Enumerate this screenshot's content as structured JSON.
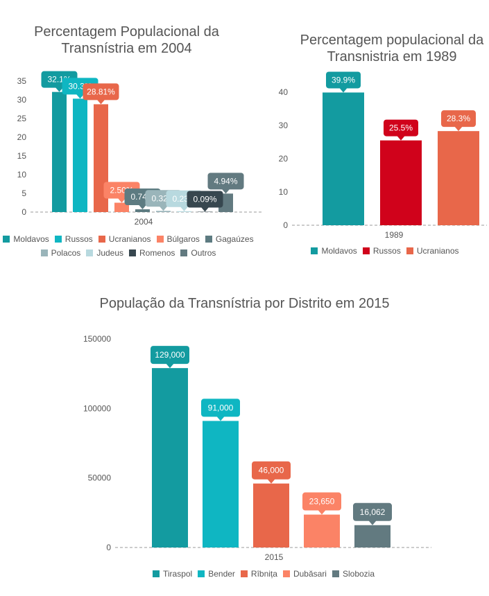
{
  "chart_data": [
    {
      "id": "c1",
      "type": "bar",
      "title": "Percentagem Populacional da Transnístria em 2004",
      "categories": [
        "2004"
      ],
      "ylim": [
        0,
        38
      ],
      "yticks": [
        0,
        5,
        10,
        15,
        20,
        25,
        30,
        35
      ],
      "grid": false,
      "legend": "bottom",
      "series": [
        {
          "name": "Moldavos",
          "value": 32.1,
          "label": "32.1%",
          "color": "#139ba0"
        },
        {
          "name": "Russos",
          "value": 30.3,
          "label": "30.3%",
          "color": "#0fb6c2"
        },
        {
          "name": "Ucranianos",
          "value": 28.81,
          "label": "28.81%",
          "color": "#e8674a"
        },
        {
          "name": "Búlgaros",
          "value": 2.5,
          "label": "2.50%",
          "color": "#fb8366"
        },
        {
          "name": "Gagaúzes",
          "value": 0.74,
          "label": "0.74%",
          "color": "#5d7b81"
        },
        {
          "name": "Polacos",
          "value": 0.32,
          "label": "0.32%",
          "color": "#9ab5ba"
        },
        {
          "name": "Judeus",
          "value": 0.23,
          "label": "0.23%",
          "color": "#b8d9df"
        },
        {
          "name": "Romenos",
          "value": 0.09,
          "label": "0.09%",
          "color": "#37474f"
        },
        {
          "name": "Outros",
          "value": 4.94,
          "label": "4.94%",
          "color": "#627a80"
        }
      ]
    },
    {
      "id": "c2",
      "type": "bar",
      "title": "Percentagem populacional da Transnistria em 1989",
      "categories": [
        "1989"
      ],
      "ylim": [
        0,
        45
      ],
      "yticks": [
        0,
        10,
        20,
        30,
        40
      ],
      "grid": false,
      "legend": "bottom",
      "series": [
        {
          "name": "Moldavos",
          "value": 39.9,
          "label": "39.9%",
          "color": "#139ba0"
        },
        {
          "name": "Russos",
          "value": 25.5,
          "label": "25.5%",
          "color": "#d0021b"
        },
        {
          "name": "Ucranianos",
          "value": 28.3,
          "label": "28.3%",
          "color": "#e8674a"
        }
      ]
    },
    {
      "id": "c3",
      "type": "bar",
      "title": "População da Transnístria por Distrito em 2015",
      "categories": [
        "2015"
      ],
      "ylim": [
        0,
        155000
      ],
      "yticks": [
        0,
        50000,
        100000,
        150000
      ],
      "grid": false,
      "legend": "bottom",
      "series": [
        {
          "name": "Tiraspol",
          "value": 129000,
          "label": "129,000",
          "color": "#139ba0"
        },
        {
          "name": "Bender",
          "value": 91000,
          "label": "91,000",
          "color": "#0fb6c2"
        },
        {
          "name": "Rîbnița",
          "value": 46000,
          "label": "46,000",
          "color": "#e8674a"
        },
        {
          "name": "Dubăsari",
          "value": 23650,
          "label": "23,650",
          "color": "#fb8366"
        },
        {
          "name": "Slobozia",
          "value": 16062,
          "label": "16,062",
          "color": "#627a80"
        }
      ]
    }
  ]
}
